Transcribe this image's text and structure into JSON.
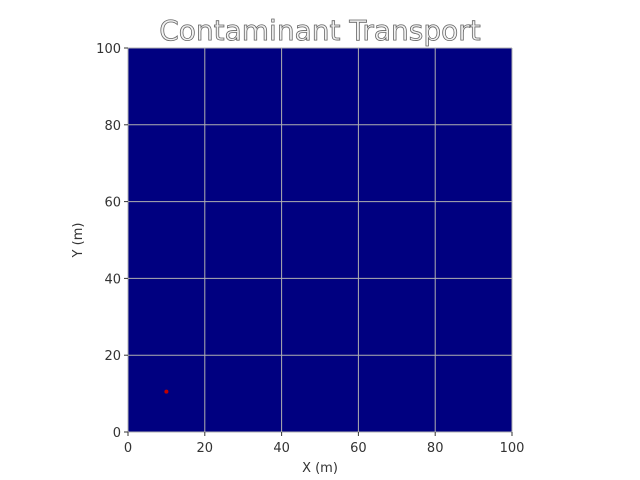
{
  "chart_data": {
    "type": "heatmap",
    "title": "Contaminant Transport",
    "xlabel": "X (m)",
    "ylabel": "Y (m)",
    "xlim": [
      0,
      100
    ],
    "ylim": [
      0,
      100
    ],
    "x_ticks": [
      "0",
      "20",
      "40",
      "60",
      "80",
      "100"
    ],
    "y_ticks": [
      "0",
      "20",
      "40",
      "60",
      "80",
      "100"
    ],
    "x_tick_values": [
      0,
      20,
      40,
      60,
      80,
      100
    ],
    "y_tick_values": [
      0,
      20,
      40,
      60,
      80,
      100
    ],
    "grid": true,
    "background_value_color": "#000080",
    "grid_color": "#b0b0b0",
    "text_color": "#333333",
    "title_fill": "#f2f2f2",
    "title_stroke": "#666666",
    "points": [
      {
        "x": 10,
        "y": 10.5,
        "color": "#c00000"
      }
    ]
  }
}
